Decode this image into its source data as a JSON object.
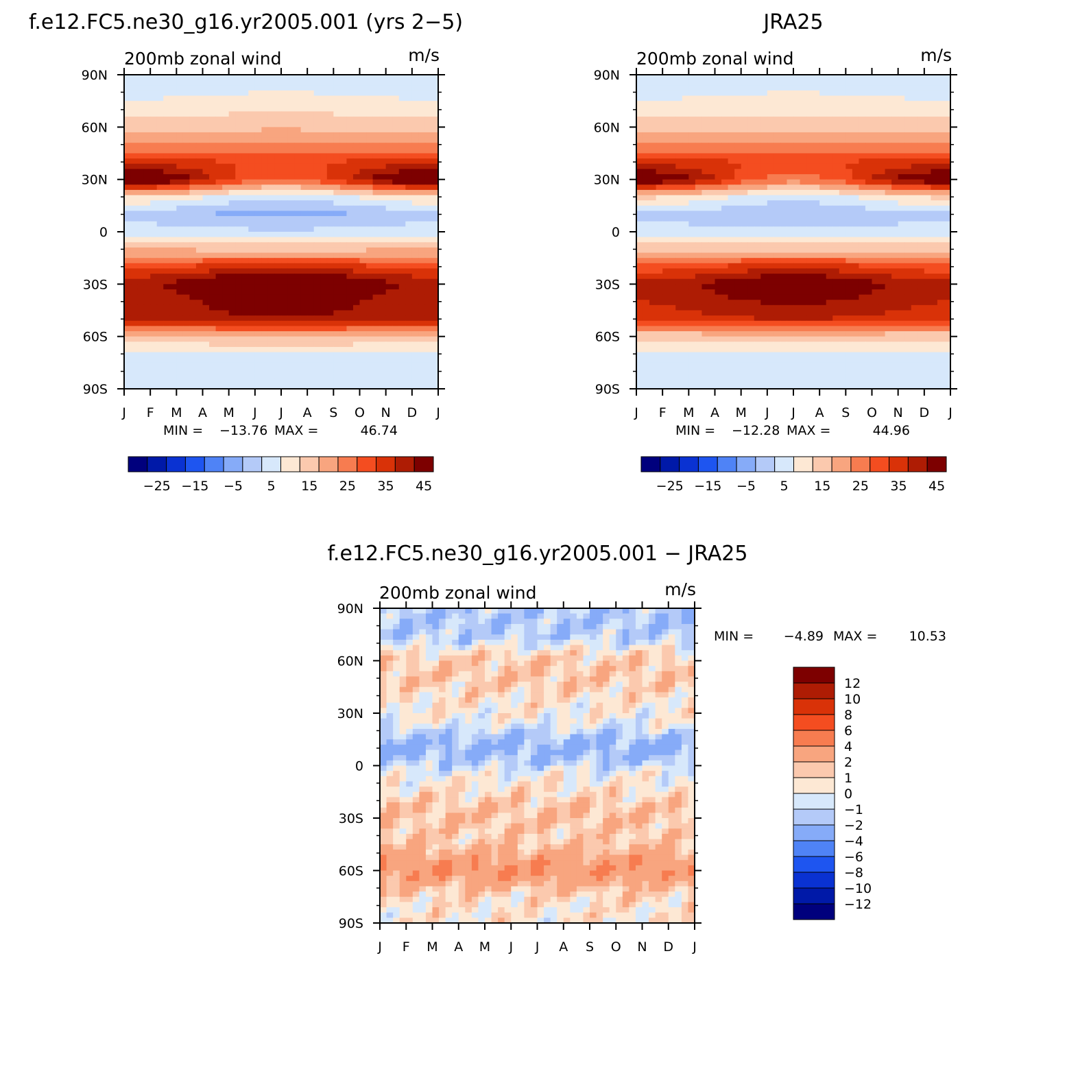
{
  "chart_data": [
    {
      "type": "heatmap",
      "title": "f.e12.FC5.ne30_g16.yr2005.001 (yrs 2−5)",
      "left_label": "200mb zonal wind",
      "right_label": "m/s",
      "x_ticks": [
        "J",
        "F",
        "M",
        "A",
        "M",
        "J",
        "J",
        "A",
        "S",
        "O",
        "N",
        "D",
        "J"
      ],
      "y_ticks": [
        "90N",
        "60N",
        "30N",
        "0",
        "30S",
        "60S",
        "90S"
      ],
      "ylim": [
        -90,
        90
      ],
      "min_label": "MIN =",
      "min_value": "−13.76",
      "max_label": "MAX =",
      "max_value": "46.74",
      "colorbar_orientation": "horizontal",
      "colorbar_labels": [
        "−25",
        "−15",
        "−5",
        "5",
        "15",
        "25",
        "35",
        "45"
      ],
      "colorbar_colors": [
        "#00007d",
        "#0019a8",
        "#0a32d2",
        "#1e55f0",
        "#4f83f6",
        "#86abf8",
        "#b4caf8",
        "#d7e8fb",
        "#fde8d4",
        "#fbc9ae",
        "#f8a57f",
        "#f77c50",
        "#f44d20",
        "#d93208",
        "#ae1c04",
        "#7d0000"
      ],
      "profile": {
        "lat": [
          -90,
          -80,
          -70,
          -60,
          -50,
          -40,
          -30,
          -20,
          -10,
          0,
          10,
          20,
          30,
          40,
          50,
          60,
          70,
          80,
          90
        ],
        "jan": [
          -3,
          -2,
          0,
          8,
          32,
          30,
          34,
          24,
          10,
          -2,
          -8,
          5,
          45,
          28,
          15,
          8,
          3,
          -2,
          -4
        ],
        "jul": [
          -2,
          -1,
          0,
          10,
          34,
          40,
          46,
          28,
          8,
          -4,
          -12,
          -4,
          20,
          24,
          16,
          9,
          4,
          0,
          -2
        ]
      }
    },
    {
      "type": "heatmap",
      "title": "JRA25",
      "left_label": "200mb zonal wind",
      "right_label": "m/s",
      "x_ticks": [
        "J",
        "F",
        "M",
        "A",
        "M",
        "J",
        "J",
        "A",
        "S",
        "O",
        "N",
        "D",
        "J"
      ],
      "y_ticks": [
        "90N",
        "60N",
        "30N",
        "0",
        "30S",
        "60S",
        "90S"
      ],
      "ylim": [
        -90,
        90
      ],
      "min_label": "MIN =",
      "min_value": "−12.28",
      "max_label": "MAX =",
      "max_value": "44.96",
      "colorbar_orientation": "horizontal",
      "colorbar_labels": [
        "−25",
        "−15",
        "−5",
        "5",
        "15",
        "25",
        "35",
        "45"
      ],
      "colorbar_colors": [
        "#00007d",
        "#0019a8",
        "#0a32d2",
        "#1e55f0",
        "#4f83f6",
        "#86abf8",
        "#b4caf8",
        "#d7e8fb",
        "#fde8d4",
        "#fbc9ae",
        "#f8a57f",
        "#f77c50",
        "#f44d20",
        "#d93208",
        "#ae1c04",
        "#7d0000"
      ],
      "profile": {
        "lat": [
          -90,
          -80,
          -70,
          -60,
          -50,
          -40,
          -30,
          -20,
          -10,
          0,
          10,
          20,
          30,
          40,
          50,
          60,
          70,
          80,
          90
        ],
        "jan": [
          -3,
          -2,
          0,
          6,
          28,
          30,
          32,
          22,
          8,
          -3,
          -6,
          6,
          42,
          28,
          15,
          8,
          3,
          -2,
          -4
        ],
        "jul": [
          -2,
          -1,
          0,
          8,
          30,
          36,
          42,
          28,
          8,
          -4,
          -10,
          -3,
          18,
          24,
          15,
          8,
          3,
          0,
          -2
        ]
      }
    },
    {
      "type": "heatmap",
      "title": "f.e12.FC5.ne30_g16.yr2005.001 − JRA25",
      "left_label": "200mb zonal wind",
      "right_label": "m/s",
      "x_ticks": [
        "J",
        "F",
        "M",
        "A",
        "M",
        "J",
        "J",
        "A",
        "S",
        "O",
        "N",
        "D",
        "J"
      ],
      "y_ticks": [
        "90N",
        "60N",
        "30N",
        "0",
        "30S",
        "60S",
        "90S"
      ],
      "ylim": [
        -90,
        90
      ],
      "min_label": "MIN =",
      "min_value": "−4.89",
      "max_label": "MAX =",
      "max_value": "10.53",
      "colorbar_orientation": "vertical",
      "colorbar_labels": [
        "12",
        "10",
        "8",
        "6",
        "4",
        "2",
        "1",
        "0",
        "−1",
        "−2",
        "−4",
        "−6",
        "−8",
        "−10",
        "−12"
      ],
      "colorbar_colors": [
        "#00007d",
        "#0019a8",
        "#0a32d2",
        "#1e55f0",
        "#4f83f6",
        "#86abf8",
        "#b4caf8",
        "#d7e8fb",
        "#fde8d4",
        "#fbc9ae",
        "#f8a57f",
        "#f77c50",
        "#f44d20",
        "#d93208",
        "#ae1c04",
        "#7d0000"
      ],
      "bands": [
        {
          "lat": 80,
          "v": -1.5
        },
        {
          "lat": 55,
          "v": 1.5
        },
        {
          "lat": 30,
          "v": 0.5
        },
        {
          "lat": 10,
          "v": -2.5
        },
        {
          "lat": -10,
          "v": 0.5
        },
        {
          "lat": -30,
          "v": 2
        },
        {
          "lat": -45,
          "v": 0.5
        },
        {
          "lat": -58,
          "v": 5
        },
        {
          "lat": -75,
          "v": 0.5
        }
      ]
    }
  ]
}
